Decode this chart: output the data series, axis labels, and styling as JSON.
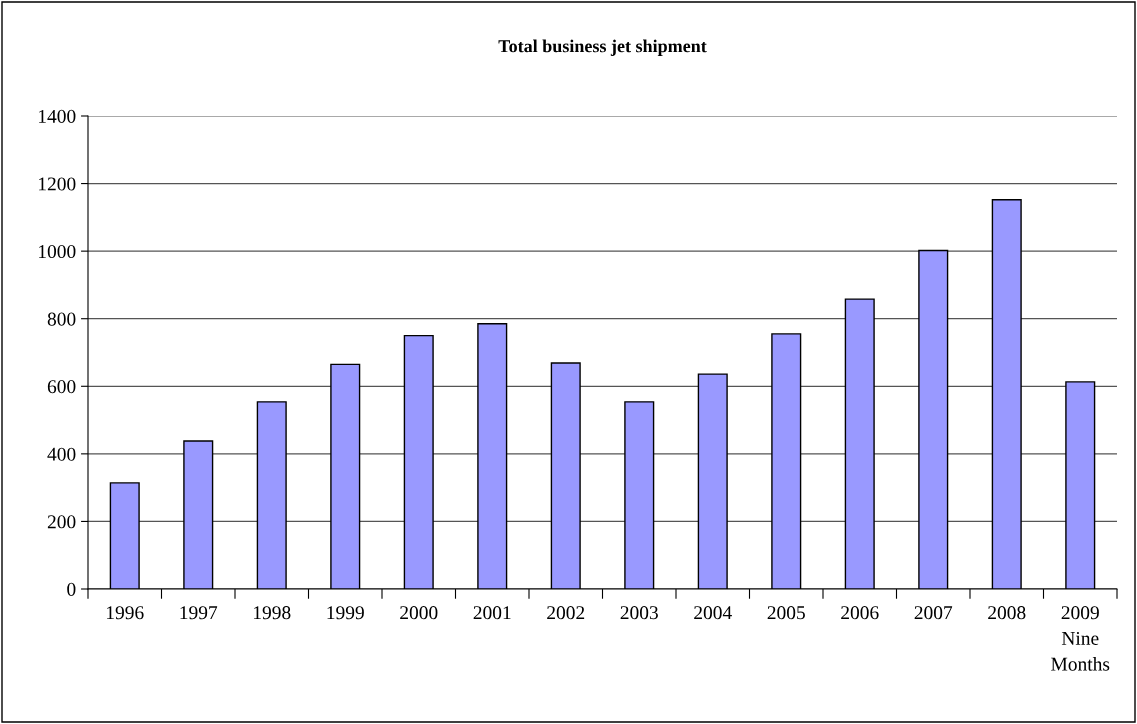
{
  "chart_data": {
    "type": "bar",
    "title": "Total business jet shipment",
    "categories": [
      "1996",
      "1997",
      "1998",
      "1999",
      "2000",
      "2001",
      "2002",
      "2003",
      "2004",
      "2005",
      "2006",
      "2007",
      "2008",
      "2009\nNine\nMonths"
    ],
    "values": [
      314,
      438,
      554,
      665,
      750,
      785,
      669,
      554,
      636,
      755,
      858,
      1002,
      1152,
      613
    ],
    "color": "#9999ff",
    "ylim": [
      0,
      1400
    ],
    "yticks": [
      0,
      200,
      400,
      600,
      800,
      1000,
      1200,
      1400
    ],
    "grid": "y",
    "legend": false
  }
}
